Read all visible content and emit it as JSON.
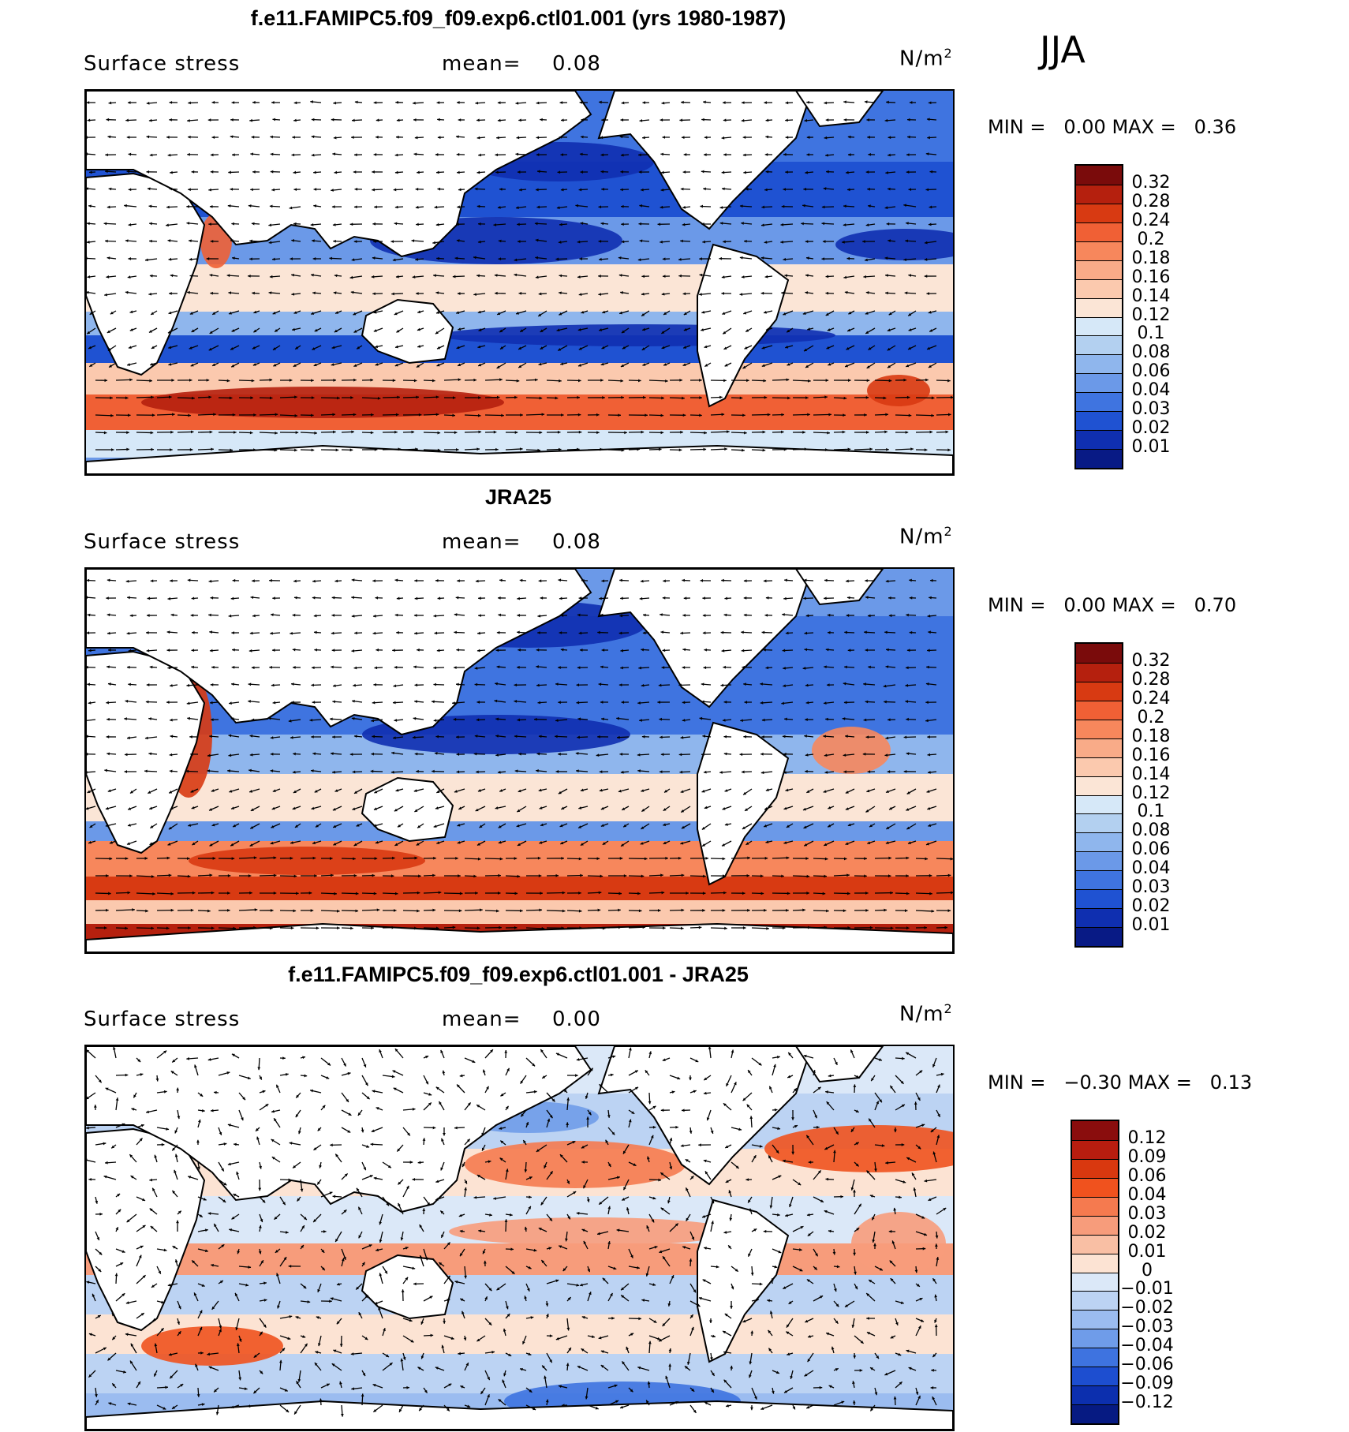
{
  "season": "JJA",
  "chart_data": [
    {
      "type": "heatmap",
      "title": "f.e11.FAMIPC5.f09_f09.exp6.ctl01.001 (yrs 1980-1987)",
      "variable": "Surface stress",
      "mean_label": "mean=",
      "mean": "0.08",
      "units": "N/m",
      "units_exp": "2",
      "min_label": "MIN =",
      "min": "0.00",
      "max_label": "MAX =",
      "max": "0.36",
      "levels": [
        "0.32",
        "0.28",
        "0.24",
        "0.2",
        "0.18",
        "0.16",
        "0.14",
        "0.12",
        "0.1",
        "0.08",
        "0.06",
        "0.04",
        "0.03",
        "0.02",
        "0.01"
      ],
      "colors": [
        "#7a0b0b",
        "#b5200e",
        "#d83a12",
        "#f06035",
        "#f7875c",
        "#f9ab88",
        "#fbc9ae",
        "#fbe5d6",
        "#d6e8f8",
        "#b3d0f0",
        "#8fb6ed",
        "#6b99e8",
        "#3f74e0",
        "#1f52d2",
        "#0f2fb0",
        "#081a85"
      ]
    },
    {
      "type": "heatmap",
      "title": "JRA25",
      "variable": "Surface stress",
      "mean_label": "mean=",
      "mean": "0.08",
      "units": "N/m",
      "units_exp": "2",
      "min_label": "MIN =",
      "min": "0.00",
      "max_label": "MAX =",
      "max": "0.70",
      "levels": [
        "0.32",
        "0.28",
        "0.24",
        "0.2",
        "0.18",
        "0.16",
        "0.14",
        "0.12",
        "0.1",
        "0.08",
        "0.06",
        "0.04",
        "0.03",
        "0.02",
        "0.01"
      ],
      "colors": [
        "#7a0b0b",
        "#b5200e",
        "#d83a12",
        "#f06035",
        "#f7875c",
        "#f9ab88",
        "#fbc9ae",
        "#fbe5d6",
        "#d6e8f8",
        "#b3d0f0",
        "#8fb6ed",
        "#6b99e8",
        "#3f74e0",
        "#1f52d2",
        "#0f2fb0",
        "#081a85"
      ]
    },
    {
      "type": "heatmap",
      "title": "f.e11.FAMIPC5.f09_f09.exp6.ctl01.001 - JRA25",
      "variable": "Surface stress",
      "mean_label": "mean=",
      "mean": "0.00",
      "units": "N/m",
      "units_exp": "2",
      "min_label": "MIN =",
      "min": "−0.30",
      "max_label": "MAX =",
      "max": "0.13",
      "levels": [
        "0.12",
        "0.09",
        "0.06",
        "0.04",
        "0.03",
        "0.02",
        "0.01",
        "0",
        "−0.01",
        "−0.02",
        "−0.03",
        "−0.04",
        "−0.06",
        "−0.09",
        "−0.12"
      ],
      "colors": [
        "#8a0d0d",
        "#b81d0f",
        "#d9380f",
        "#f0521e",
        "#f57a4f",
        "#f79c7b",
        "#f9bfa4",
        "#fce3d3",
        "#dbe8f8",
        "#bcd3f3",
        "#9bbcf0",
        "#6f9ce9",
        "#3e73e0",
        "#1d4ed0",
        "#0c2fae",
        "#061a82"
      ]
    }
  ]
}
